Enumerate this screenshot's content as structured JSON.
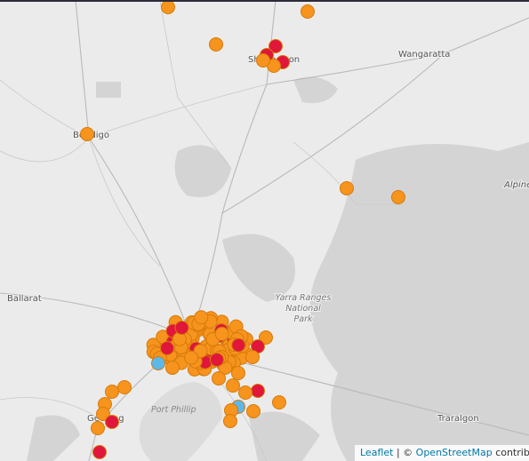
{
  "map": {
    "labels": {
      "wangaratta": "Wangaratta",
      "shepparton": "Shepparton",
      "bendigo": "Bendigo",
      "alpine": "Alpine",
      "ballarat": "Ballarat",
      "yarra": [
        "Yarra Ranges",
        "National",
        "Park"
      ],
      "port_phillip": "Port Phillip",
      "geelong": "Geelong",
      "traralgon": "Traralgon"
    }
  },
  "attribution": {
    "leaflet": "Leaflet",
    "separator": "| ©",
    "osm": "OpenStreetMap",
    "contributors": "contributors"
  }
}
